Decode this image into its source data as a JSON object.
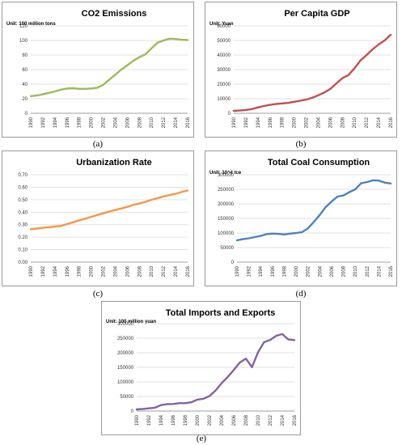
{
  "chart_data": [
    {
      "type": "line",
      "title": "CO2 Emissions",
      "unit": "Unit: 100 million tons",
      "caption": "(a)",
      "color": "#9bbb59",
      "ylim": [
        0,
        120
      ],
      "yticks": [
        "0",
        "20",
        "40",
        "60",
        "80",
        "100",
        "120"
      ],
      "xticks": [
        "1990",
        "1992",
        "1994",
        "1996",
        "1998",
        "2000",
        "2002",
        "2004",
        "2006",
        "2008",
        "2010",
        "2012",
        "2014",
        "2016"
      ],
      "x": [
        1990,
        1991,
        1992,
        1993,
        1994,
        1995,
        1996,
        1997,
        1998,
        1999,
        2000,
        2001,
        2002,
        2003,
        2004,
        2005,
        2006,
        2007,
        2008,
        2009,
        2010,
        2011,
        2012,
        2013,
        2014,
        2015,
        2016
      ],
      "values": [
        23.5,
        24.5,
        26,
        28,
        30,
        32.5,
        34,
        34.5,
        33.5,
        33.5,
        34,
        35,
        39,
        46,
        53,
        60,
        66,
        72,
        77,
        81,
        89,
        97,
        100,
        102.5,
        102,
        101,
        100.5
      ]
    },
    {
      "type": "line",
      "title": "Per Capita GDP",
      "unit": "Unit: Yuan",
      "caption": "(b)",
      "color": "#c0504d",
      "ylim": [
        0,
        60000
      ],
      "yticks": [
        "0",
        "10000",
        "20000",
        "30000",
        "40000",
        "50000",
        "60000"
      ],
      "xticks": [
        "1990",
        "1992",
        "1994",
        "1996",
        "1998",
        "2000",
        "2002",
        "2004",
        "2006",
        "2008",
        "2010",
        "2012",
        "2014",
        "2016"
      ],
      "x": [
        1990,
        1991,
        1992,
        1993,
        1994,
        1995,
        1996,
        1997,
        1998,
        1999,
        2000,
        2001,
        2002,
        2003,
        2004,
        2005,
        2006,
        2007,
        2008,
        2009,
        2010,
        2011,
        2012,
        2013,
        2014,
        2015,
        2016
      ],
      "values": [
        1650,
        1900,
        2300,
        2900,
        4000,
        5000,
        5800,
        6400,
        6800,
        7100,
        7900,
        8600,
        9400,
        10600,
        12400,
        14300,
        16700,
        20500,
        24100,
        26200,
        30900,
        36300,
        40000,
        43900,
        47200,
        50000,
        53900
      ]
    },
    {
      "type": "line",
      "title": "Urbanization Rate",
      "unit": "",
      "caption": "(c)",
      "color": "#f79646",
      "ylim": [
        0,
        0.7
      ],
      "yticks": [
        "0.00",
        "0.10",
        "0.20",
        "0.30",
        "0.40",
        "0.50",
        "0.60",
        "0.70"
      ],
      "xticks": [
        "1990",
        "1992",
        "1994",
        "1996",
        "1998",
        "2000",
        "2002",
        "2004",
        "2006",
        "2008",
        "2010",
        "2012",
        "2014",
        "2016"
      ],
      "x": [
        1990,
        1991,
        1992,
        1993,
        1994,
        1995,
        1996,
        1997,
        1998,
        1999,
        2000,
        2001,
        2002,
        2003,
        2004,
        2005,
        2006,
        2007,
        2008,
        2009,
        2010,
        2011,
        2012,
        2013,
        2014,
        2015,
        2016
      ],
      "values": [
        0.264,
        0.269,
        0.275,
        0.28,
        0.285,
        0.29,
        0.305,
        0.319,
        0.334,
        0.348,
        0.362,
        0.377,
        0.391,
        0.405,
        0.418,
        0.43,
        0.443,
        0.459,
        0.47,
        0.483,
        0.499,
        0.513,
        0.526,
        0.537,
        0.548,
        0.561,
        0.574
      ]
    },
    {
      "type": "line",
      "title": "Total Coal Consumption",
      "unit": "Unit: 10^4 tce",
      "caption": "(d)",
      "color": "#4f81bd",
      "ylim": [
        0,
        300000
      ],
      "yticks": [
        "0",
        "50000",
        "100000",
        "150000",
        "200000",
        "250000",
        "300000"
      ],
      "xticks": [
        "1990",
        "1992",
        "1994",
        "1996",
        "1998",
        "2000",
        "2002",
        "2004",
        "2006",
        "2008",
        "2010",
        "2012",
        "2014",
        "2016"
      ],
      "x": [
        1990,
        1991,
        1992,
        1993,
        1994,
        1995,
        1996,
        1997,
        1998,
        1999,
        2000,
        2001,
        2002,
        2003,
        2004,
        2005,
        2006,
        2007,
        2008,
        2009,
        2010,
        2011,
        2012,
        2013,
        2014,
        2015,
        2016
      ],
      "values": [
        75000,
        79000,
        82000,
        86000,
        90000,
        96000,
        98000,
        97000,
        95000,
        98000,
        100000,
        103000,
        116000,
        138000,
        162000,
        189000,
        208000,
        225000,
        229000,
        240000,
        250000,
        271000,
        275000,
        281000,
        280000,
        273000,
        270000
      ]
    },
    {
      "type": "line",
      "title": "Total Imports and Exports",
      "unit": "Unit: 100 million yuan",
      "caption": "(e)",
      "color": "#8064a2",
      "ylim": [
        0,
        300000
      ],
      "yticks": [
        "0",
        "50000",
        "100000",
        "150000",
        "200000",
        "250000",
        "300000"
      ],
      "xticks": [
        "1990",
        "1992",
        "1994",
        "1996",
        "1998",
        "2000",
        "2002",
        "2004",
        "2006",
        "2008",
        "2010",
        "2012",
        "2014",
        "2016"
      ],
      "x": [
        1990,
        1991,
        1992,
        1993,
        1994,
        1995,
        1996,
        1997,
        1998,
        1999,
        2000,
        2001,
        2002,
        2003,
        2004,
        2005,
        2006,
        2007,
        2008,
        2009,
        2010,
        2011,
        2012,
        2013,
        2014,
        2015,
        2016
      ],
      "values": [
        5600,
        7200,
        9100,
        11300,
        20300,
        23500,
        24100,
        26900,
        26900,
        29900,
        39300,
        42200,
        51400,
        70500,
        95500,
        116900,
        140900,
        166700,
        179900,
        150600,
        201700,
        236400,
        244200,
        258200,
        264200,
        245500,
        243400
      ]
    }
  ]
}
